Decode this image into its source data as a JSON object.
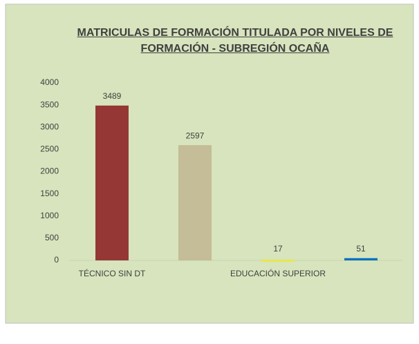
{
  "chart_data": {
    "type": "bar",
    "title": "MATRICULAS DE FORMACIÓN TITULADA POR NIVELES DE FORMACIÓN - SUBREGIÓN OCAÑA",
    "categories": [
      "TÉCNICO SIN DT",
      null,
      "EDUCACIÓN SUPERIOR",
      null
    ],
    "values": [
      3489,
      2597,
      17,
      51
    ],
    "colors": [
      "#953735",
      "#c4bd97",
      "#e8e84a",
      "#0070c0"
    ],
    "ylim": [
      0,
      4000
    ],
    "yticks": [
      0,
      500,
      1000,
      1500,
      2000,
      2500,
      3000,
      3500,
      4000
    ],
    "grid": false
  }
}
